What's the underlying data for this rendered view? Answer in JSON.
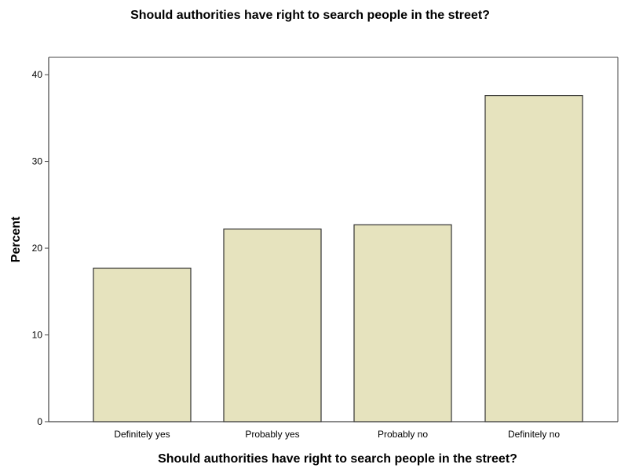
{
  "chart_data": {
    "type": "bar",
    "title": "Should authorities have right to search people in the street?",
    "xlabel": "Should authorities have right to search people in the street?",
    "ylabel": "Percent",
    "categories": [
      "Definitely yes",
      "Probably yes",
      "Probably no",
      "Definitely no"
    ],
    "values": [
      17.7,
      22.2,
      22.7,
      37.6
    ],
    "ylim": [
      0,
      42
    ],
    "yticks": [
      "0",
      "10",
      "20",
      "30",
      "40"
    ],
    "grid": false,
    "bar_color": "#e6e3be",
    "edge_color": "#333333"
  }
}
